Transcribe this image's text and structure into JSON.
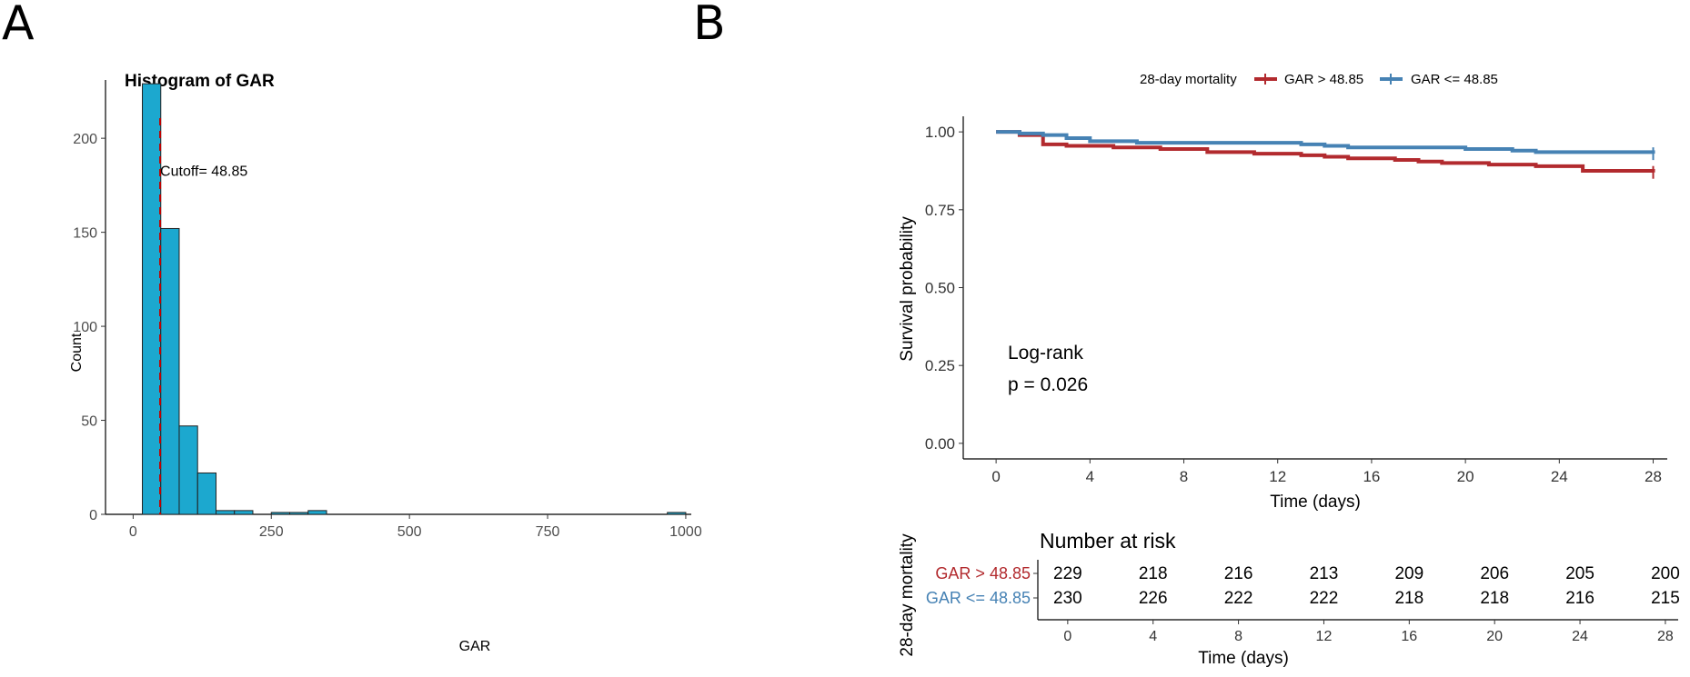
{
  "panels": {
    "a": "A",
    "b": "B"
  },
  "chart_data": [
    {
      "type": "bar",
      "title": "Histogram of GAR",
      "xlabel": "GAR",
      "ylabel": "Count",
      "xlim": [
        -50,
        1010
      ],
      "ylim": [
        0,
        231
      ],
      "xticks": [
        0,
        250,
        500,
        750,
        1000
      ],
      "yticks": [
        0,
        50,
        100,
        150,
        200
      ],
      "bin_width": 33.3,
      "bins": [
        {
          "start": 16.7,
          "count": 229
        },
        {
          "start": 50.0,
          "count": 152
        },
        {
          "start": 83.3,
          "count": 47
        },
        {
          "start": 116.7,
          "count": 22
        },
        {
          "start": 150.0,
          "count": 2
        },
        {
          "start": 183.3,
          "count": 2
        },
        {
          "start": 250.0,
          "count": 1
        },
        {
          "start": 283.3,
          "count": 1
        },
        {
          "start": 316.7,
          "count": 2
        },
        {
          "start": 966.7,
          "count": 1
        }
      ],
      "cutoff": {
        "value": 48.85,
        "label": "Cutoff= 48.85"
      },
      "colors": {
        "fill": "#1CA8CF",
        "cutoff": "#C00000"
      }
    },
    {
      "type": "line",
      "title": "",
      "legend_title": "28-day mortality",
      "legend_position": "top",
      "xlabel": "Time (days)",
      "ylabel": "Survival probability",
      "xlim": [
        -1.4,
        28.6
      ],
      "ylim": [
        -0.05,
        1.05
      ],
      "xticks": [
        0,
        4,
        8,
        12,
        16,
        20,
        24,
        28
      ],
      "yticks": [
        0.0,
        0.25,
        0.5,
        0.75,
        1.0
      ],
      "ytick_labels": [
        "0.00",
        "0.25",
        "0.50",
        "0.75",
        "1.00"
      ],
      "series": [
        {
          "name": "GAR > 48.85",
          "color": "#B22A2E",
          "steps": [
            [
              0,
              1.0
            ],
            [
              1,
              0.99
            ],
            [
              2,
              0.96
            ],
            [
              3,
              0.955
            ],
            [
              5,
              0.95
            ],
            [
              7,
              0.945
            ],
            [
              9,
              0.935
            ],
            [
              11,
              0.93
            ],
            [
              13,
              0.925
            ],
            [
              14,
              0.92
            ],
            [
              15,
              0.915
            ],
            [
              17,
              0.91
            ],
            [
              18,
              0.905
            ],
            [
              19,
              0.9
            ],
            [
              20,
              0.9
            ],
            [
              21,
              0.895
            ],
            [
              23,
              0.89
            ],
            [
              25,
              0.875
            ],
            [
              28,
              0.87
            ]
          ],
          "censor": [
            28,
            0.87
          ]
        },
        {
          "name": "GAR <= 48.85",
          "color": "#4682B4",
          "steps": [
            [
              0,
              1.0
            ],
            [
              1,
              0.995
            ],
            [
              2,
              0.99
            ],
            [
              3,
              0.98
            ],
            [
              4,
              0.97
            ],
            [
              6,
              0.965
            ],
            [
              13,
              0.96
            ],
            [
              14,
              0.955
            ],
            [
              15,
              0.95
            ],
            [
              20,
              0.945
            ],
            [
              22,
              0.94
            ],
            [
              23,
              0.935
            ],
            [
              28,
              0.93
            ]
          ],
          "censor": [
            28,
            0.93
          ]
        }
      ],
      "annotation": {
        "line1": "Log-rank",
        "line2": "p = 0.026"
      }
    },
    {
      "type": "table",
      "title": "Number at risk",
      "ylabel": "28-day mortality",
      "xlabel": "Time (days)",
      "xlim": [
        -1.4,
        28.6
      ],
      "times": [
        0,
        4,
        8,
        12,
        16,
        20,
        24,
        28
      ],
      "rows": [
        {
          "label": "GAR > 48.85",
          "color": "#B22A2E",
          "values": [
            229,
            218,
            216,
            213,
            209,
            206,
            205,
            200
          ]
        },
        {
          "label": "GAR <= 48.85",
          "color": "#4682B4",
          "values": [
            230,
            226,
            222,
            222,
            218,
            218,
            216,
            215
          ]
        }
      ]
    }
  ]
}
